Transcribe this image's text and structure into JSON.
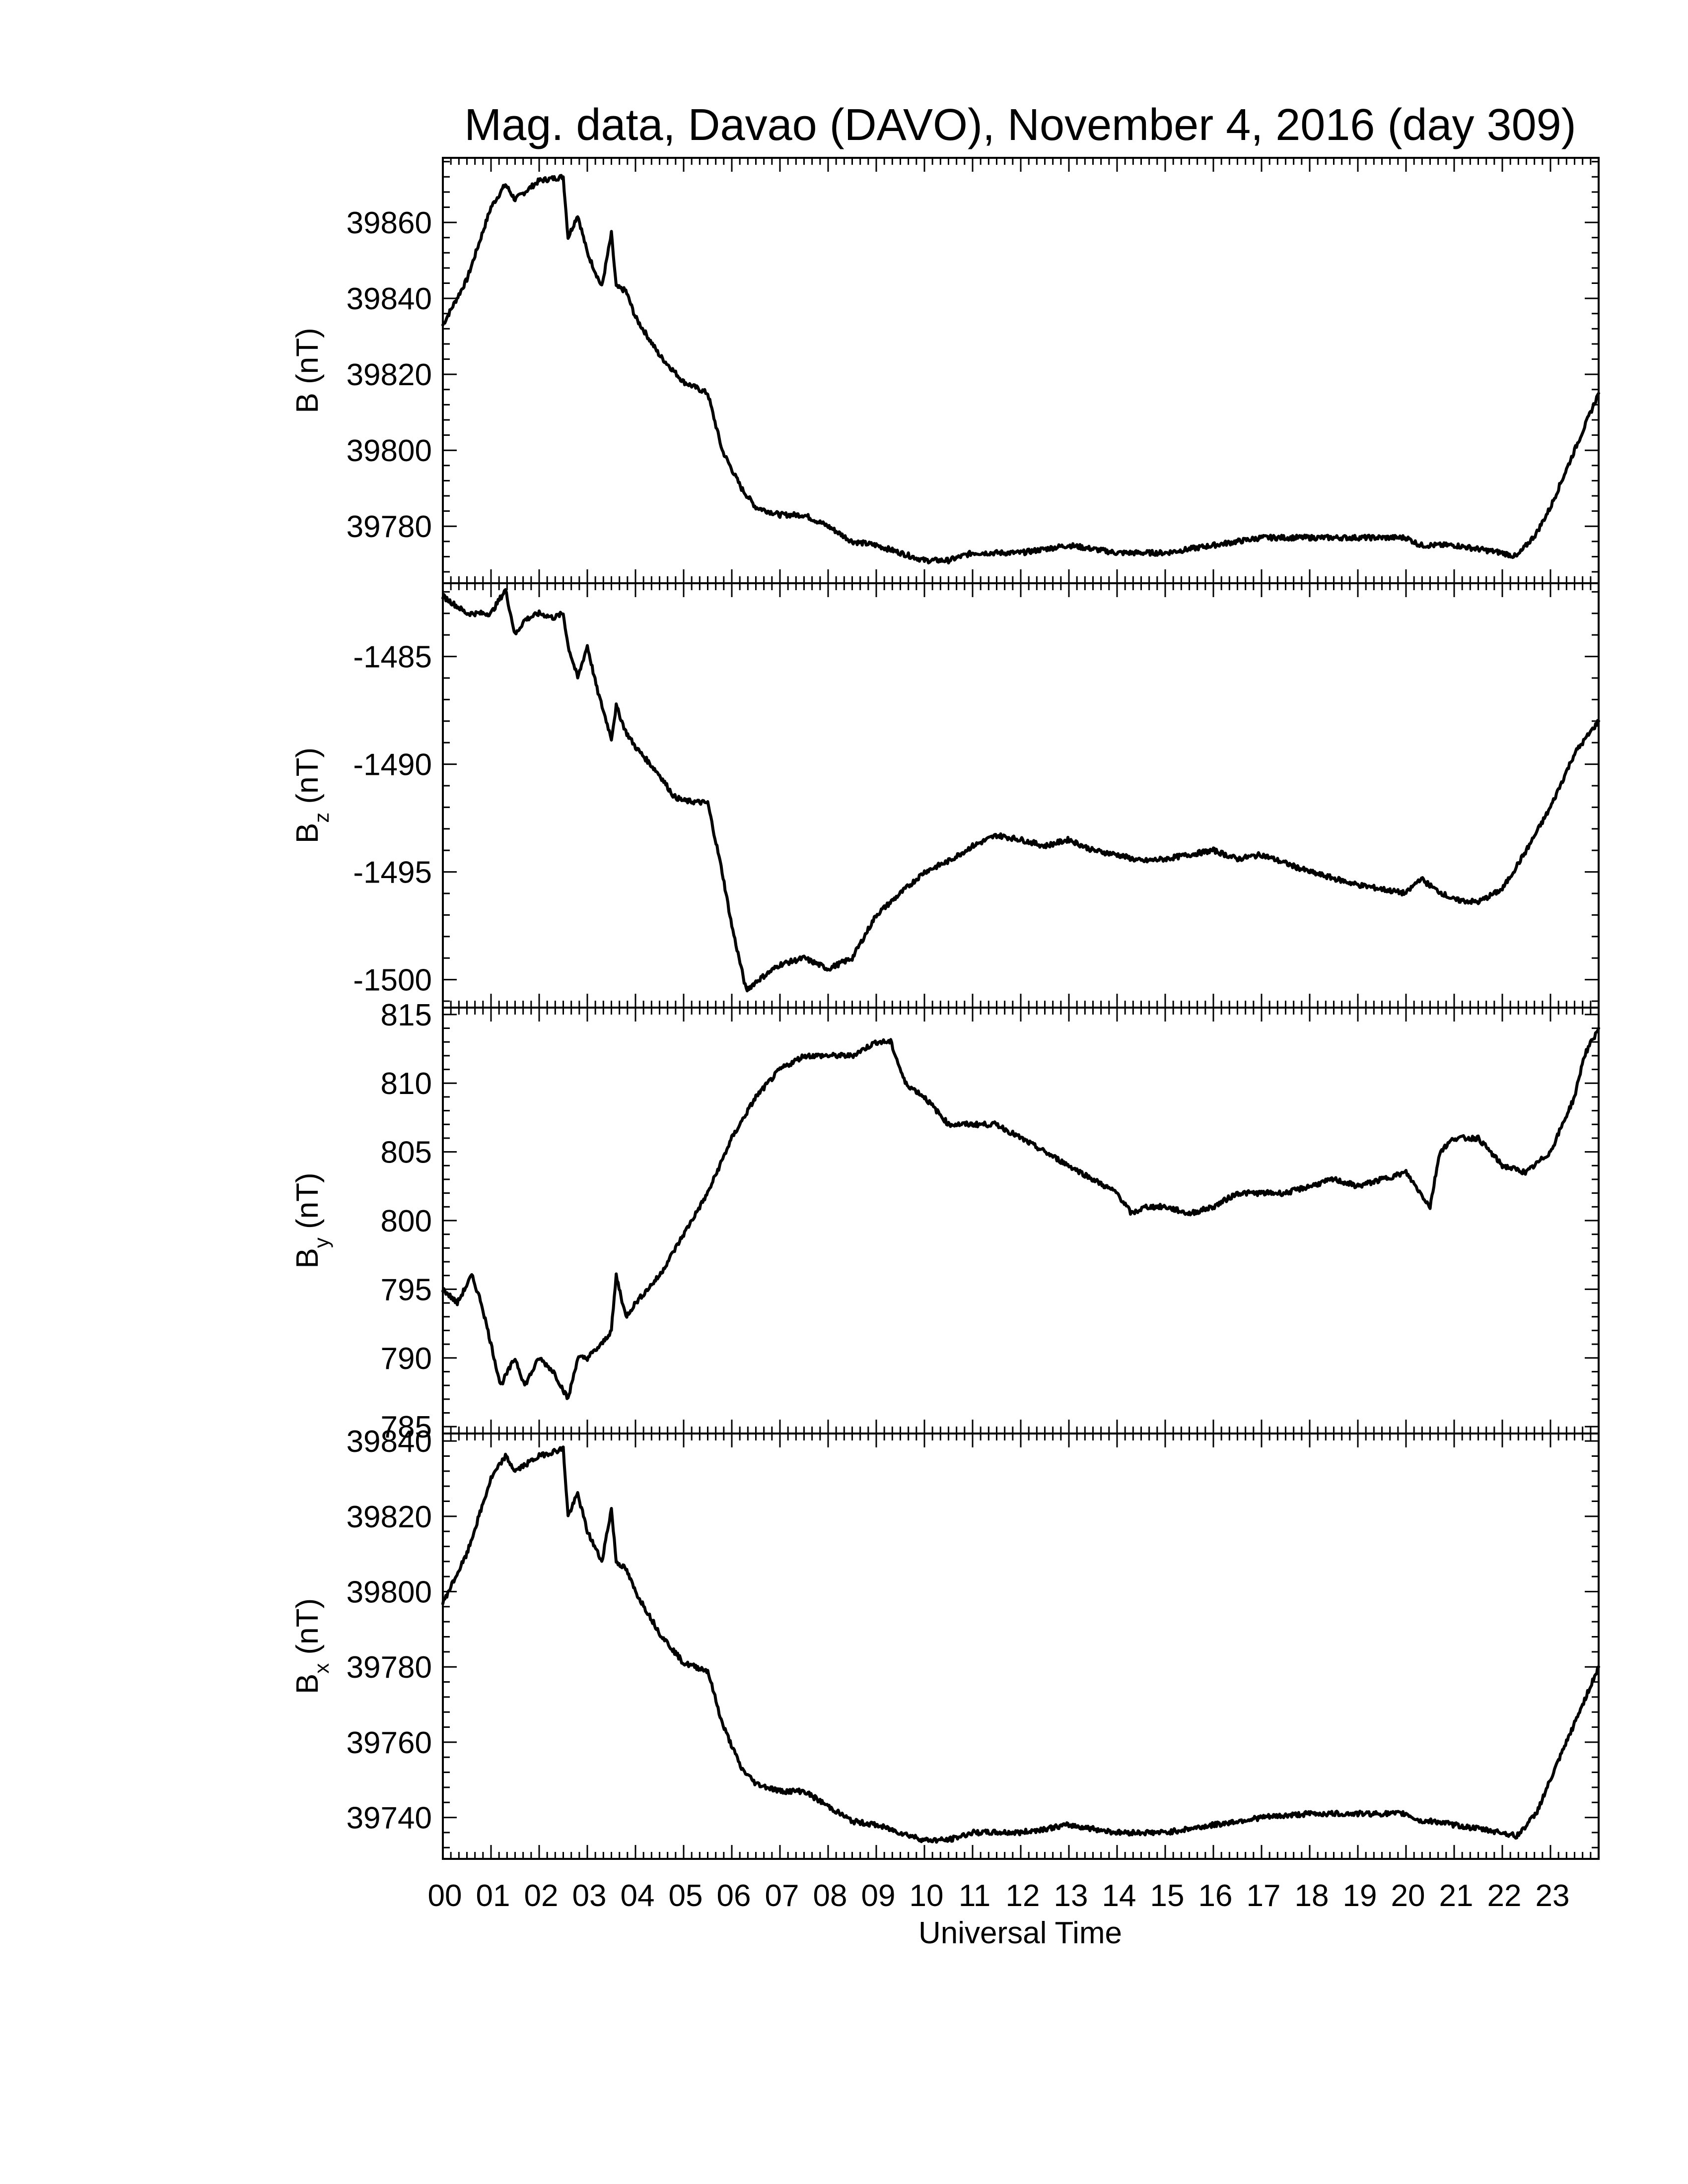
{
  "chart_data": {
    "type": "line",
    "title": "Mag. data, Davao (DAVO), November 4, 2016 (day 309)",
    "xlabel": "Universal Time",
    "x_tick_labels": [
      "00",
      "01",
      "02",
      "03",
      "04",
      "05",
      "06",
      "07",
      "08",
      "09",
      "10",
      "11",
      "12",
      "13",
      "14",
      "15",
      "16",
      "17",
      "18",
      "19",
      "20",
      "21",
      "22",
      "23"
    ],
    "xlim": [
      0,
      24
    ],
    "x_unit": "hours UT",
    "panels": [
      {
        "ylabel": "B (nT)",
        "ylabel_base": "B",
        "ylabel_sub": "",
        "ylabel_unit": "(nT)",
        "ylim": [
          39765,
          39877
        ],
        "yticks": [
          39780,
          39800,
          39820,
          39840,
          39860
        ],
        "x": [
          0,
          0.5,
          1.0,
          1.3,
          1.5,
          2.0,
          2.5,
          2.6,
          2.8,
          3.0,
          3.3,
          3.5,
          3.6,
          3.8,
          4.0,
          4.5,
          5.0,
          5.5,
          5.8,
          6.2,
          6.5,
          7.0,
          7.5,
          8.0,
          8.5,
          9.0,
          9.5,
          10.0,
          10.5,
          11.0,
          12.0,
          13.0,
          14.0,
          15.0,
          16.0,
          17.0,
          18.0,
          19.0,
          20.0,
          20.3,
          20.6,
          21.0,
          21.5,
          22.0,
          22.3,
          22.7,
          23.0,
          23.5,
          24.0
        ],
        "y": [
          39833,
          39845,
          39864,
          39870,
          39866,
          39871,
          39872,
          39856,
          39862,
          39852,
          39843,
          39857,
          39843,
          39842,
          39835,
          39825,
          39818,
          39815,
          39800,
          39790,
          39785,
          39783,
          39783,
          39780,
          39776,
          39775,
          39773,
          39771,
          39771,
          39773,
          39773,
          39775,
          39773,
          39773,
          39775,
          39777,
          39777,
          39777,
          39777,
          39775,
          39775,
          39775,
          39774,
          39773,
          39772,
          39778,
          39785,
          39800,
          39815
        ]
      },
      {
        "ylabel": "Bz (nT)",
        "ylabel_base": "B",
        "ylabel_sub": "z",
        "ylabel_unit": "(nT)",
        "ylim": [
          -1501.3,
          -1481.6
        ],
        "yticks": [
          -1485,
          -1490,
          -1495,
          -1500
        ],
        "x": [
          0,
          0.5,
          1.0,
          1.3,
          1.5,
          1.7,
          2.0,
          2.3,
          2.5,
          2.6,
          2.8,
          3.0,
          3.2,
          3.5,
          3.6,
          3.8,
          4.0,
          4.5,
          4.8,
          5.0,
          5.5,
          5.8,
          6.0,
          6.3,
          6.5,
          7.0,
          7.5,
          8.0,
          8.5,
          9.0,
          9.5,
          10.0,
          10.5,
          11.0,
          11.5,
          12.0,
          12.5,
          13.0,
          13.5,
          14.0,
          14.5,
          15.0,
          15.5,
          16.0,
          16.5,
          17.0,
          17.5,
          18.0,
          18.5,
          19.0,
          19.5,
          20.0,
          20.3,
          20.6,
          21.0,
          21.5,
          22.0,
          22.5,
          23.0,
          23.5,
          24.0
        ],
        "y": [
          -1482.2,
          -1483.0,
          -1483.0,
          -1481.9,
          -1484.0,
          -1483.3,
          -1483.0,
          -1483.2,
          -1483.0,
          -1484.5,
          -1486.0,
          -1484.5,
          -1486.5,
          -1488.8,
          -1487.3,
          -1488.5,
          -1489.2,
          -1490.5,
          -1491.5,
          -1491.7,
          -1491.8,
          -1495.0,
          -1497.5,
          -1500.5,
          -1500.1,
          -1499.3,
          -1499.0,
          -1499.5,
          -1499.0,
          -1497.0,
          -1496.0,
          -1495.0,
          -1494.5,
          -1493.8,
          -1493.3,
          -1493.5,
          -1493.8,
          -1493.5,
          -1494.0,
          -1494.2,
          -1494.5,
          -1494.4,
          -1494.2,
          -1494.0,
          -1494.4,
          -1494.2,
          -1494.6,
          -1495.0,
          -1495.3,
          -1495.6,
          -1495.8,
          -1496.0,
          -1495.3,
          -1495.8,
          -1496.3,
          -1496.4,
          -1495.8,
          -1494.0,
          -1492.0,
          -1489.5,
          -1488.0
        ]
      },
      {
        "ylabel": "By (nT)",
        "ylabel_base": "B",
        "ylabel_sub": "y",
        "ylabel_unit": "(nT)",
        "ylim": [
          784.5,
          815.5
        ],
        "yticks": [
          785,
          790,
          795,
          800,
          805,
          810,
          815
        ],
        "x": [
          0,
          0.3,
          0.6,
          0.8,
          1.0,
          1.2,
          1.5,
          1.7,
          2.0,
          2.3,
          2.6,
          2.8,
          3.0,
          3.3,
          3.5,
          3.6,
          3.8,
          4.0,
          4.5,
          5.0,
          5.5,
          6.0,
          6.5,
          7.0,
          7.5,
          8.0,
          8.5,
          9.0,
          9.3,
          9.6,
          10.0,
          10.5,
          11.0,
          11.5,
          12.0,
          12.5,
          13.0,
          13.5,
          14.0,
          14.3,
          14.6,
          15.0,
          15.5,
          16.0,
          16.5,
          17.0,
          17.5,
          18.0,
          18.5,
          19.0,
          19.5,
          20.0,
          20.3,
          20.5,
          20.7,
          21.0,
          21.3,
          21.5,
          22.0,
          22.5,
          23.0,
          23.5,
          23.7,
          24.0
        ],
        "y": [
          795,
          794,
          796,
          794,
          791,
          788,
          790,
          788,
          790,
          789,
          787,
          790,
          790,
          791,
          792,
          796,
          793,
          794,
          796,
          799,
          802,
          806,
          809,
          811,
          812,
          812,
          812,
          813,
          813,
          810,
          809,
          807,
          807,
          807,
          806,
          805,
          804,
          803,
          802,
          800.5,
          801,
          801,
          800.5,
          801,
          802,
          802,
          802,
          802.5,
          803,
          802.5,
          803,
          803.5,
          802,
          801,
          805,
          806,
          806,
          806,
          804,
          803.5,
          805,
          809,
          812,
          814
        ]
      },
      {
        "ylabel": "Bx (nT)",
        "ylabel_base": "B",
        "ylabel_sub": "x",
        "ylabel_unit": "(nT)",
        "ylim": [
          39729,
          39842
        ],
        "yticks": [
          39740,
          39760,
          39780,
          39800,
          39820,
          39840
        ],
        "x": [
          0,
          0.5,
          1.0,
          1.3,
          1.5,
          2.0,
          2.5,
          2.6,
          2.8,
          3.0,
          3.3,
          3.5,
          3.6,
          3.8,
          4.0,
          4.5,
          5.0,
          5.5,
          5.8,
          6.2,
          6.5,
          7.0,
          7.5,
          8.0,
          8.5,
          9.0,
          9.5,
          10.0,
          10.5,
          11.0,
          12.0,
          13.0,
          14.0,
          15.0,
          16.0,
          17.0,
          18.0,
          19.0,
          20.0,
          20.3,
          20.6,
          21.0,
          21.5,
          22.0,
          22.3,
          22.7,
          23.0,
          23.5,
          24.0
        ],
        "y": [
          39797,
          39810,
          39830,
          39836,
          39832,
          39836,
          39838,
          39820,
          39826,
          39816,
          39808,
          39822,
          39808,
          39806,
          39800,
          39789,
          39781,
          39779,
          39765,
          39753,
          39749,
          39747,
          39747,
          39743,
          39739,
          39738,
          39736,
          39734,
          39734,
          39736,
          39736,
          39738,
          39736,
          39736,
          39738,
          39740,
          39741,
          39741,
          39741,
          39739,
          39739,
          39738,
          39737,
          39736,
          39735,
          39741,
          39750,
          39765,
          39780
        ]
      }
    ]
  }
}
